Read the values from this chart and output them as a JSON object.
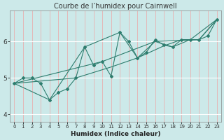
{
  "title": "Courbe de l’humidex pour Cairnwell",
  "xlabel": "Humidex (Indice chaleur)",
  "xlim": [
    -0.5,
    23.5
  ],
  "ylim": [
    3.8,
    6.85
  ],
  "yticks": [
    4,
    5,
    6
  ],
  "xticks": [
    0,
    1,
    2,
    3,
    4,
    5,
    6,
    7,
    8,
    9,
    10,
    11,
    12,
    13,
    14,
    15,
    16,
    17,
    18,
    19,
    20,
    21,
    22,
    23
  ],
  "bg_color": "#cce9e9",
  "grid_color_h": "#ffffff",
  "grid_color_v": "#e8b0b0",
  "line_color": "#2e7d6e",
  "series1": [
    [
      0,
      4.85
    ],
    [
      1,
      5.0
    ],
    [
      2,
      5.0
    ],
    [
      3,
      4.85
    ],
    [
      4,
      4.4
    ],
    [
      5,
      4.6
    ],
    [
      6,
      4.7
    ],
    [
      7,
      5.0
    ],
    [
      8,
      5.85
    ],
    [
      9,
      5.35
    ],
    [
      10,
      5.45
    ],
    [
      11,
      5.05
    ],
    [
      12,
      6.25
    ],
    [
      13,
      6.0
    ],
    [
      14,
      5.55
    ],
    [
      15,
      5.7
    ],
    [
      16,
      6.05
    ],
    [
      17,
      5.9
    ],
    [
      18,
      5.85
    ],
    [
      19,
      6.05
    ],
    [
      20,
      6.05
    ],
    [
      21,
      6.05
    ],
    [
      22,
      6.15
    ],
    [
      23,
      6.6
    ]
  ],
  "series2": [
    [
      0,
      4.85
    ],
    [
      4,
      4.4
    ],
    [
      8,
      5.85
    ],
    [
      12,
      6.25
    ],
    [
      14,
      5.55
    ],
    [
      16,
      6.0
    ],
    [
      18,
      5.85
    ],
    [
      20,
      6.05
    ],
    [
      23,
      6.6
    ]
  ],
  "series3": [
    [
      0,
      4.85
    ],
    [
      7,
      5.0
    ],
    [
      11,
      5.3
    ],
    [
      14,
      5.55
    ],
    [
      17,
      5.88
    ],
    [
      19,
      6.05
    ],
    [
      21,
      6.05
    ],
    [
      23,
      6.6
    ]
  ],
  "series4": [
    [
      0,
      4.85
    ],
    [
      10,
      5.45
    ],
    [
      16,
      6.0
    ],
    [
      21,
      6.05
    ],
    [
      23,
      6.6
    ]
  ],
  "marker": "D",
  "markersize": 2.0,
  "linewidth": 0.8,
  "title_fontsize": 7.0,
  "tick_fontsize": 5.0,
  "label_fontsize": 6.5
}
